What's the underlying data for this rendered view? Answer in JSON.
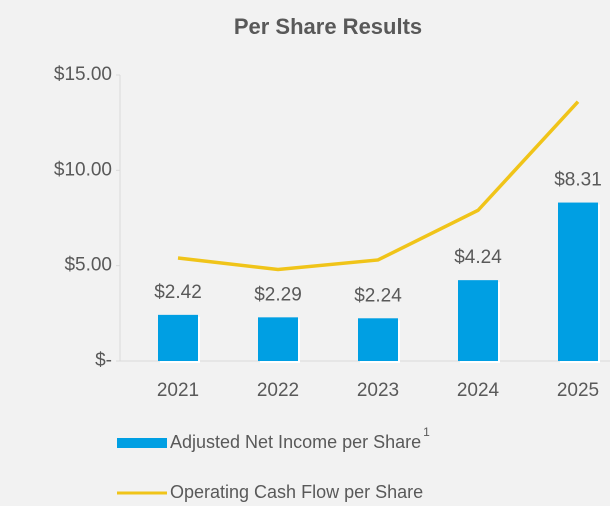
{
  "chart_data": {
    "type": "bar_line",
    "title": "Per Share Results",
    "categories": [
      "2021",
      "2022",
      "2023",
      "2024",
      "2025"
    ],
    "ylim": [
      0,
      15
    ],
    "yticks": [
      {
        "value": 0,
        "label": "$-"
      },
      {
        "value": 5,
        "label": "$5.00"
      },
      {
        "value": 10,
        "label": "$10.00"
      },
      {
        "value": 15,
        "label": "$15.00"
      }
    ],
    "grid": false,
    "series": [
      {
        "name": "Adjusted Net Income per Share",
        "superscript": "1",
        "type": "bar",
        "color": "#009fe3",
        "values": [
          2.42,
          2.29,
          2.24,
          4.24,
          8.31
        ],
        "value_labels": [
          "$2.42",
          "$2.29",
          "$2.24",
          "$4.24",
          "$8.31"
        ]
      },
      {
        "name": "Operating Cash Flow per Share",
        "type": "line",
        "color": "#f0c419",
        "values": [
          5.4,
          4.8,
          5.3,
          7.9,
          13.6
        ]
      }
    ]
  }
}
